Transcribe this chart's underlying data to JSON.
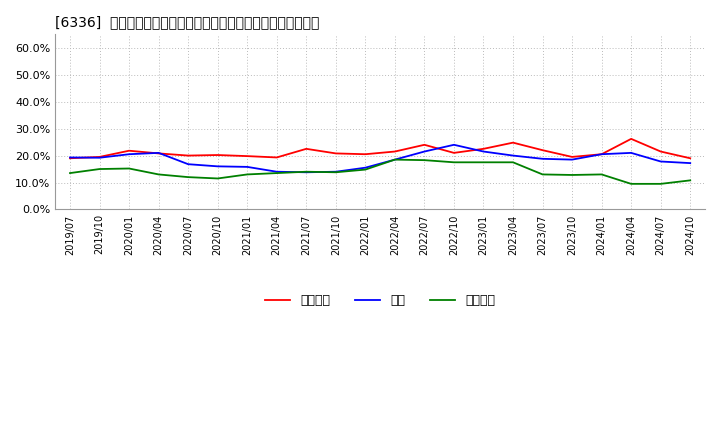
{
  "title": "[6336]  売上債権、在庫、買入債務の総資産に対する比率の推移",
  "ylim": [
    0.0,
    0.65
  ],
  "yticks": [
    0.0,
    0.1,
    0.2,
    0.3,
    0.4,
    0.5,
    0.6
  ],
  "background_color": "#ffffff",
  "grid_color": "#bbbbbb",
  "legend_labels": [
    "売上債権",
    "在庫",
    "買入債務"
  ],
  "line_colors": [
    "#ff0000",
    "#0000ff",
    "#008000"
  ],
  "x_labels": [
    "2019/07",
    "2019/10",
    "2020/01",
    "2020/04",
    "2020/07",
    "2020/10",
    "2021/01",
    "2021/04",
    "2021/07",
    "2021/10",
    "2022/01",
    "2022/04",
    "2022/07",
    "2022/10",
    "2023/01",
    "2023/04",
    "2023/07",
    "2023/10",
    "2024/01",
    "2024/04",
    "2024/07",
    "2024/10"
  ],
  "series_urikake": [
    0.19,
    0.195,
    0.218,
    0.208,
    0.2,
    0.202,
    0.198,
    0.193,
    0.225,
    0.208,
    0.205,
    0.215,
    0.24,
    0.21,
    0.225,
    0.248,
    0.22,
    0.195,
    0.205,
    0.262,
    0.215,
    0.19
  ],
  "series_zaiko": [
    0.193,
    0.192,
    0.205,
    0.21,
    0.168,
    0.16,
    0.158,
    0.14,
    0.138,
    0.14,
    0.155,
    0.185,
    0.215,
    0.24,
    0.215,
    0.2,
    0.188,
    0.185,
    0.205,
    0.21,
    0.178,
    0.172
  ],
  "series_kaiire": [
    0.135,
    0.15,
    0.152,
    0.13,
    0.12,
    0.115,
    0.13,
    0.135,
    0.14,
    0.138,
    0.148,
    0.185,
    0.183,
    0.175,
    0.175,
    0.175,
    0.13,
    0.128,
    0.13,
    0.095,
    0.095,
    0.108
  ],
  "title_fontsize": 10,
  "tick_fontsize": 8,
  "legend_fontsize": 9
}
